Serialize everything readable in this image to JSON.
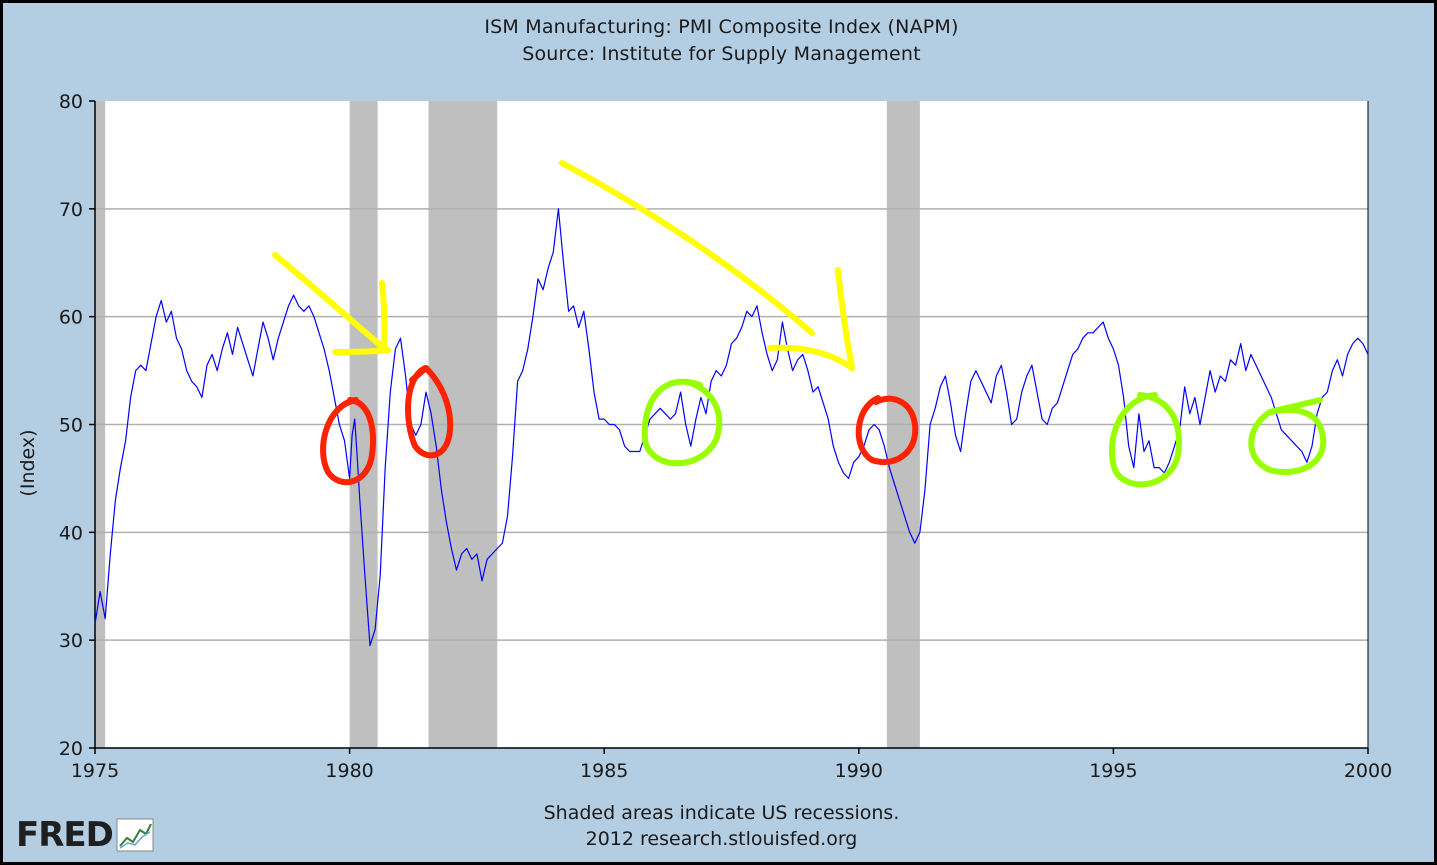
{
  "chart_data": {
    "type": "line",
    "title": "ISM Manufacturing: PMI Composite Index (NAPM)",
    "subtitle": "Source: Institute for Supply Management",
    "xlabel": "",
    "ylabel": "(Index)",
    "xlim": [
      1975,
      2000
    ],
    "ylim": [
      20,
      80
    ],
    "x_ticks": [
      "1975",
      "1980",
      "1985",
      "1990",
      "1995",
      "2000"
    ],
    "y_ticks": [
      "20",
      "30",
      "40",
      "50",
      "60",
      "70",
      "80"
    ],
    "grid": true,
    "line_color": "#0000ff",
    "recession_color": "#bfbfbf",
    "recessions": [
      [
        1973.9,
        1975.2
      ],
      [
        1980.0,
        1980.55
      ],
      [
        1981.55,
        1982.9
      ],
      [
        1990.55,
        1991.2
      ]
    ],
    "series": [
      {
        "points": [
          [
            1975.0,
            31.5
          ],
          [
            1975.1,
            34.5
          ],
          [
            1975.2,
            32.0
          ],
          [
            1975.3,
            38.0
          ],
          [
            1975.4,
            43.0
          ],
          [
            1975.5,
            46.0
          ],
          [
            1975.6,
            48.5
          ],
          [
            1975.7,
            52.5
          ],
          [
            1975.8,
            55.0
          ],
          [
            1975.9,
            55.5
          ],
          [
            1976.0,
            55.0
          ],
          [
            1976.1,
            57.5
          ],
          [
            1976.2,
            60.0
          ],
          [
            1976.3,
            61.5
          ],
          [
            1976.4,
            59.5
          ],
          [
            1976.5,
            60.5
          ],
          [
            1976.6,
            58.0
          ],
          [
            1976.7,
            57.0
          ],
          [
            1976.8,
            55.0
          ],
          [
            1976.9,
            54.0
          ],
          [
            1977.0,
            53.5
          ],
          [
            1977.1,
            52.5
          ],
          [
            1977.2,
            55.5
          ],
          [
            1977.3,
            56.5
          ],
          [
            1977.4,
            55.0
          ],
          [
            1977.5,
            57.0
          ],
          [
            1977.6,
            58.5
          ],
          [
            1977.7,
            56.5
          ],
          [
            1977.8,
            59.0
          ],
          [
            1977.9,
            57.5
          ],
          [
            1978.0,
            56.0
          ],
          [
            1978.1,
            54.5
          ],
          [
            1978.2,
            57.0
          ],
          [
            1978.3,
            59.5
          ],
          [
            1978.4,
            58.0
          ],
          [
            1978.5,
            56.0
          ],
          [
            1978.6,
            58.0
          ],
          [
            1978.7,
            59.5
          ],
          [
            1978.8,
            61.0
          ],
          [
            1978.9,
            62.0
          ],
          [
            1979.0,
            61.0
          ],
          [
            1979.1,
            60.5
          ],
          [
            1979.2,
            61.0
          ],
          [
            1979.3,
            60.0
          ],
          [
            1979.4,
            58.5
          ],
          [
            1979.5,
            57.0
          ],
          [
            1979.6,
            55.0
          ],
          [
            1979.7,
            52.5
          ],
          [
            1979.8,
            50.0
          ],
          [
            1979.9,
            48.5
          ],
          [
            1980.0,
            45.0
          ],
          [
            1980.05,
            49.0
          ],
          [
            1980.1,
            50.5
          ],
          [
            1980.15,
            47.0
          ],
          [
            1980.2,
            43.0
          ],
          [
            1980.3,
            36.0
          ],
          [
            1980.4,
            29.5
          ],
          [
            1980.5,
            31.0
          ],
          [
            1980.6,
            36.0
          ],
          [
            1980.7,
            46.0
          ],
          [
            1980.8,
            53.0
          ],
          [
            1980.9,
            57.0
          ],
          [
            1981.0,
            58.0
          ],
          [
            1981.1,
            54.5
          ],
          [
            1981.2,
            50.0
          ],
          [
            1981.3,
            49.0
          ],
          [
            1981.4,
            50.0
          ],
          [
            1981.5,
            53.0
          ],
          [
            1981.6,
            51.0
          ],
          [
            1981.7,
            48.0
          ],
          [
            1981.8,
            44.0
          ],
          [
            1981.9,
            41.0
          ],
          [
            1982.0,
            38.5
          ],
          [
            1982.1,
            36.5
          ],
          [
            1982.2,
            38.0
          ],
          [
            1982.3,
            38.5
          ],
          [
            1982.4,
            37.5
          ],
          [
            1982.5,
            38.0
          ],
          [
            1982.6,
            35.5
          ],
          [
            1982.7,
            37.5
          ],
          [
            1982.8,
            38.0
          ],
          [
            1982.9,
            38.5
          ],
          [
            1983.0,
            39.0
          ],
          [
            1983.1,
            41.5
          ],
          [
            1983.2,
            47.0
          ],
          [
            1983.3,
            54.0
          ],
          [
            1983.4,
            55.0
          ],
          [
            1983.5,
            57.0
          ],
          [
            1983.6,
            60.0
          ],
          [
            1983.7,
            63.5
          ],
          [
            1983.8,
            62.5
          ],
          [
            1983.9,
            64.5
          ],
          [
            1984.0,
            66.0
          ],
          [
            1984.1,
            70.0
          ],
          [
            1984.2,
            65.0
          ],
          [
            1984.3,
            60.5
          ],
          [
            1984.4,
            61.0
          ],
          [
            1984.5,
            59.0
          ],
          [
            1984.6,
            60.5
          ],
          [
            1984.7,
            57.0
          ],
          [
            1984.8,
            53.0
          ],
          [
            1984.9,
            50.5
          ],
          [
            1985.0,
            50.5
          ],
          [
            1985.1,
            50.0
          ],
          [
            1985.2,
            50.0
          ],
          [
            1985.3,
            49.5
          ],
          [
            1985.4,
            48.0
          ],
          [
            1985.5,
            47.5
          ],
          [
            1985.6,
            47.5
          ],
          [
            1985.7,
            47.5
          ],
          [
            1985.8,
            49.0
          ],
          [
            1985.9,
            50.5
          ],
          [
            1986.0,
            51.0
          ],
          [
            1986.1,
            51.5
          ],
          [
            1986.2,
            51.0
          ],
          [
            1986.3,
            50.5
          ],
          [
            1986.4,
            51.0
          ],
          [
            1986.5,
            53.0
          ],
          [
            1986.6,
            50.0
          ],
          [
            1986.7,
            48.0
          ],
          [
            1986.8,
            50.5
          ],
          [
            1986.9,
            52.5
          ],
          [
            1987.0,
            51.0
          ],
          [
            1987.1,
            54.0
          ],
          [
            1987.2,
            55.0
          ],
          [
            1987.3,
            54.5
          ],
          [
            1987.4,
            55.5
          ],
          [
            1987.5,
            57.5
          ],
          [
            1987.6,
            58.0
          ],
          [
            1987.7,
            59.0
          ],
          [
            1987.8,
            60.5
          ],
          [
            1987.9,
            60.0
          ],
          [
            1988.0,
            61.0
          ],
          [
            1988.1,
            58.5
          ],
          [
            1988.2,
            56.5
          ],
          [
            1988.3,
            55.0
          ],
          [
            1988.4,
            56.0
          ],
          [
            1988.5,
            59.5
          ],
          [
            1988.6,
            57.0
          ],
          [
            1988.7,
            55.0
          ],
          [
            1988.8,
            56.0
          ],
          [
            1988.9,
            56.5
          ],
          [
            1989.0,
            55.0
          ],
          [
            1989.1,
            53.0
          ],
          [
            1989.2,
            53.5
          ],
          [
            1989.3,
            52.0
          ],
          [
            1989.4,
            50.5
          ],
          [
            1989.5,
            48.0
          ],
          [
            1989.6,
            46.5
          ],
          [
            1989.7,
            45.5
          ],
          [
            1989.8,
            45.0
          ],
          [
            1989.9,
            46.5
          ],
          [
            1990.0,
            47.0
          ],
          [
            1990.1,
            48.0
          ],
          [
            1990.2,
            49.5
          ],
          [
            1990.3,
            50.0
          ],
          [
            1990.4,
            49.5
          ],
          [
            1990.5,
            48.0
          ],
          [
            1990.6,
            46.0
          ],
          [
            1990.7,
            44.5
          ],
          [
            1990.8,
            43.0
          ],
          [
            1990.9,
            41.5
          ],
          [
            1991.0,
            40.0
          ],
          [
            1991.1,
            39.0
          ],
          [
            1991.2,
            40.0
          ],
          [
            1991.3,
            44.0
          ],
          [
            1991.4,
            50.0
          ],
          [
            1991.5,
            51.5
          ],
          [
            1991.6,
            53.5
          ],
          [
            1991.7,
            54.5
          ],
          [
            1991.8,
            52.0
          ],
          [
            1991.9,
            49.0
          ],
          [
            1992.0,
            47.5
          ],
          [
            1992.1,
            51.0
          ],
          [
            1992.2,
            54.0
          ],
          [
            1992.3,
            55.0
          ],
          [
            1992.4,
            54.0
          ],
          [
            1992.5,
            53.0
          ],
          [
            1992.6,
            52.0
          ],
          [
            1992.7,
            54.5
          ],
          [
            1992.8,
            55.5
          ],
          [
            1992.9,
            53.0
          ],
          [
            1993.0,
            50.0
          ],
          [
            1993.1,
            50.5
          ],
          [
            1993.2,
            53.0
          ],
          [
            1993.3,
            54.5
          ],
          [
            1993.4,
            55.5
          ],
          [
            1993.5,
            53.0
          ],
          [
            1993.6,
            50.5
          ],
          [
            1993.7,
            50.0
          ],
          [
            1993.8,
            51.5
          ],
          [
            1993.9,
            52.0
          ],
          [
            1994.0,
            53.5
          ],
          [
            1994.1,
            55.0
          ],
          [
            1994.2,
            56.5
          ],
          [
            1994.3,
            57.0
          ],
          [
            1994.4,
            58.0
          ],
          [
            1994.5,
            58.5
          ],
          [
            1994.6,
            58.5
          ],
          [
            1994.7,
            59.0
          ],
          [
            1994.8,
            59.5
          ],
          [
            1994.9,
            58.0
          ],
          [
            1995.0,
            57.0
          ],
          [
            1995.1,
            55.5
          ],
          [
            1995.2,
            52.5
          ],
          [
            1995.3,
            48.0
          ],
          [
            1995.4,
            46.0
          ],
          [
            1995.5,
            51.0
          ],
          [
            1995.6,
            47.5
          ],
          [
            1995.7,
            48.5
          ],
          [
            1995.8,
            46.0
          ],
          [
            1995.9,
            46.0
          ],
          [
            1996.0,
            45.5
          ],
          [
            1996.1,
            46.5
          ],
          [
            1996.2,
            48.0
          ],
          [
            1996.3,
            49.5
          ],
          [
            1996.4,
            53.5
          ],
          [
            1996.5,
            51.0
          ],
          [
            1996.6,
            52.5
          ],
          [
            1996.7,
            50.0
          ],
          [
            1996.8,
            52.5
          ],
          [
            1996.9,
            55.0
          ],
          [
            1997.0,
            53.0
          ],
          [
            1997.1,
            54.5
          ],
          [
            1997.2,
            54.0
          ],
          [
            1997.3,
            56.0
          ],
          [
            1997.4,
            55.5
          ],
          [
            1997.5,
            57.5
          ],
          [
            1997.6,
            55.0
          ],
          [
            1997.7,
            56.5
          ],
          [
            1997.8,
            55.5
          ],
          [
            1997.9,
            54.5
          ],
          [
            1998.0,
            53.5
          ],
          [
            1998.1,
            52.5
          ],
          [
            1998.2,
            51.0
          ],
          [
            1998.3,
            49.5
          ],
          [
            1998.4,
            49.0
          ],
          [
            1998.5,
            48.5
          ],
          [
            1998.6,
            48.0
          ],
          [
            1998.7,
            47.5
          ],
          [
            1998.8,
            46.5
          ],
          [
            1998.9,
            48.0
          ],
          [
            1999.0,
            51.0
          ],
          [
            1999.1,
            52.5
          ],
          [
            1999.2,
            53.0
          ],
          [
            1999.3,
            55.0
          ],
          [
            1999.4,
            56.0
          ],
          [
            1999.5,
            54.5
          ],
          [
            1999.6,
            56.5
          ],
          [
            1999.7,
            57.5
          ],
          [
            1999.8,
            58.0
          ],
          [
            1999.9,
            57.5
          ],
          [
            2000.0,
            56.5
          ]
        ]
      }
    ]
  },
  "footer": {
    "note": "Shaded areas indicate US recessions.",
    "source": "2012 research.stlouisfed.org"
  },
  "logo": {
    "text": "FRED"
  },
  "annotations": {
    "arrow_color": "#ffff00",
    "red_circle_color": "#ff2200",
    "green_circle_color": "#99ff00",
    "arrows": 2,
    "red_circles": 3,
    "green_circles": 3
  }
}
